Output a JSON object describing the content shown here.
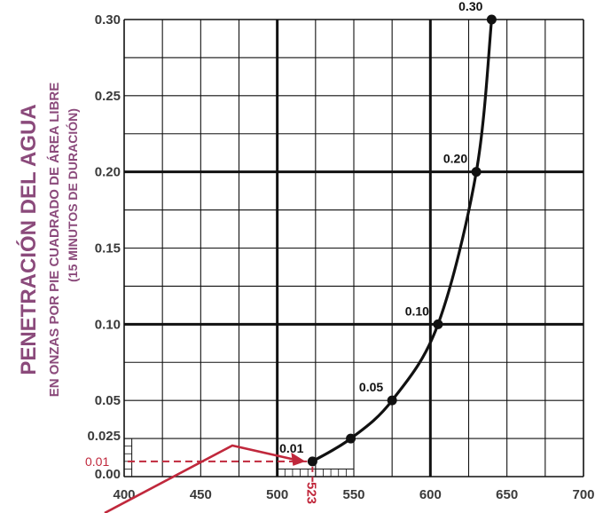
{
  "chart_data": {
    "type": "line",
    "ylabel": "PENETRACIÓN DEL AGUA",
    "ylabel_sub": "EN ONZAS POR PIE CUADRADO DE ÁREA LIBRE",
    "ylabel_sub2": "(15 MINUTOS DE DURACIÓN)",
    "xlabel": "",
    "xlim": [
      400,
      700
    ],
    "ylim": [
      0,
      0.3
    ],
    "x_ticks": [
      "400",
      "450",
      "500",
      "550",
      "600",
      "650",
      "700"
    ],
    "y_ticks": [
      "0.00",
      "0.025",
      "0.05",
      "0.10",
      "0.15",
      "0.20",
      "0.25",
      "0.30"
    ],
    "grid": true,
    "series": [
      {
        "points": [
          {
            "x": 523,
            "y": 0.01
          },
          {
            "x": 548,
            "y": 0.025
          },
          {
            "x": 575,
            "y": 0.05
          },
          {
            "x": 605,
            "y": 0.1
          },
          {
            "x": 630,
            "y": 0.2
          },
          {
            "x": 640,
            "y": 0.3
          }
        ]
      }
    ],
    "point_labels": [
      {
        "x": 523,
        "y": 0.01,
        "text": "0.01"
      },
      {
        "x": 575,
        "y": 0.05,
        "text": "0.05"
      },
      {
        "x": 605,
        "y": 0.1,
        "text": "0.10"
      },
      {
        "x": 630,
        "y": 0.2,
        "text": "0.20"
      },
      {
        "x": 640,
        "y": 0.3,
        "text": "0.30"
      }
    ],
    "annotation": {
      "y_value_label": "0.01",
      "x_value_label": "523",
      "color": "#c0283c"
    },
    "colors": {
      "curve": "#111111",
      "grid": "#111111",
      "tick_labels": "#3a3a3a",
      "ylabel": "#8b4a7b",
      "annotation": "#c0283c"
    }
  }
}
